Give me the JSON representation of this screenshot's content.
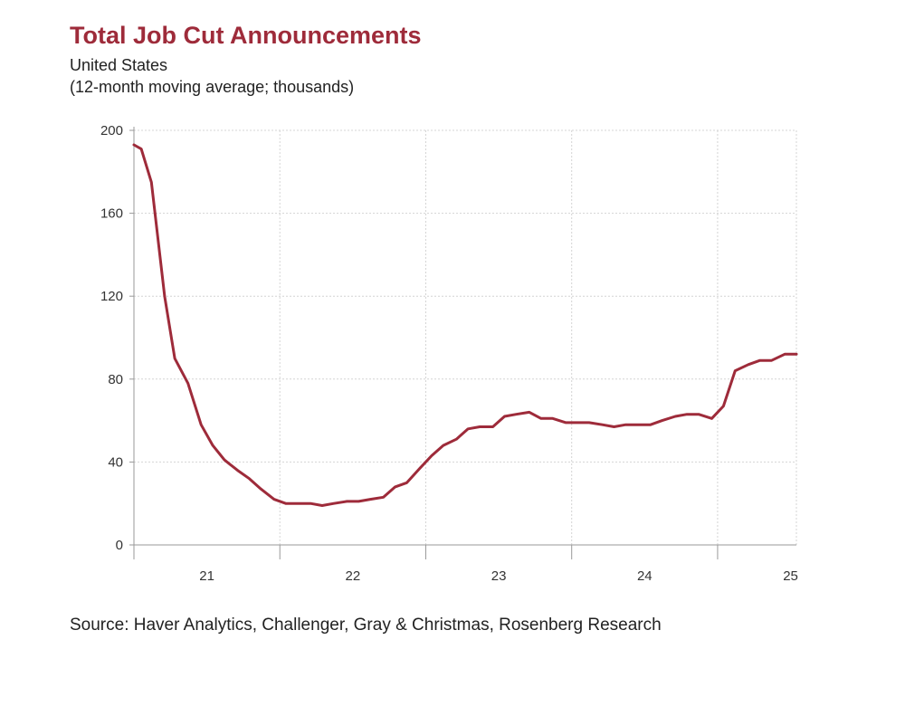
{
  "header": {
    "title": "Total Job Cut Announcements",
    "subtitle_1": "United States",
    "subtitle_2": "(12-month moving average; thousands)"
  },
  "footer": {
    "source": "Source: Haver Analytics, Challenger, Gray & Christmas, Rosenberg Research"
  },
  "chart_data": {
    "type": "line",
    "title": "Total Job Cut Announcements",
    "subtitle": "United States (12-month moving average; thousands)",
    "xlabel": "",
    "ylabel": "",
    "ylim": [
      0,
      200
    ],
    "xlim": [
      2020.5,
      2025.04
    ],
    "yticks": [
      0,
      40,
      80,
      120,
      160,
      200
    ],
    "xticks": [
      {
        "value": 2021.0,
        "label": "21"
      },
      {
        "value": 2022.0,
        "label": "22"
      },
      {
        "value": 2023.0,
        "label": "23"
      },
      {
        "value": 2024.0,
        "label": "24"
      },
      {
        "value": 2025.0,
        "label": "25"
      }
    ],
    "grid": true,
    "line_color": "#9e2b3a",
    "series": [
      {
        "x": [
          2020.5,
          2020.55,
          2020.62,
          2020.71,
          2020.78,
          2020.87,
          2020.96,
          2021.04,
          2021.12,
          2021.21,
          2021.29,
          2021.37,
          2021.46,
          2021.54,
          2021.62,
          2021.71,
          2021.79,
          2021.87,
          2021.96,
          2022.04,
          2022.12,
          2022.21,
          2022.29,
          2022.37,
          2022.46,
          2022.54,
          2022.62,
          2022.71,
          2022.79,
          2022.87,
          2022.96,
          2023.04,
          2023.12,
          2023.21,
          2023.29,
          2023.37,
          2023.46,
          2023.54,
          2023.62,
          2023.71,
          2023.79,
          2023.87,
          2023.96,
          2024.04,
          2024.12,
          2024.21,
          2024.29,
          2024.37,
          2024.46,
          2024.54,
          2024.62,
          2024.71,
          2024.79,
          2024.87,
          2024.96,
          2025.04
        ],
        "y": [
          193,
          191,
          175,
          120,
          90,
          78,
          58,
          48,
          41,
          36,
          32,
          27,
          22,
          20,
          20,
          20,
          19,
          20,
          21,
          21,
          22,
          23,
          28,
          30,
          37,
          43,
          48,
          51,
          56,
          57,
          57,
          62,
          63,
          64,
          61,
          61,
          59,
          59,
          59,
          58,
          57,
          58,
          58,
          58,
          60,
          62,
          63,
          63,
          61,
          67,
          84,
          87,
          89,
          89,
          92,
          92
        ]
      }
    ]
  }
}
